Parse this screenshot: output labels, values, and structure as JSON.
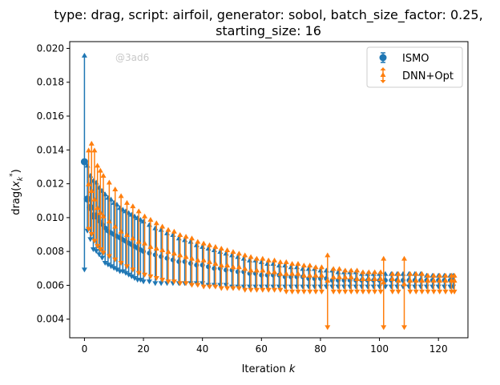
{
  "chart_data": {
    "type": "scatter",
    "title_line1": "type: drag, script: airfoil, generator: sobol, batch_size_factor: 0.25,",
    "title_line2": "starting_size: 16",
    "xlabel": "Iteration",
    "xlabel_italic": "k",
    "ylabel": "drag(",
    "ylabel_var": "x",
    "ylabel_sub": "k",
    "ylabel_sup": "*",
    "ylabel_close": ")",
    "xlim": [
      -5,
      130
    ],
    "ylim": [
      0.0029,
      0.0204
    ],
    "xticks": [
      0,
      20,
      40,
      60,
      80,
      100,
      120
    ],
    "xtick_labels": [
      "0",
      "20",
      "40",
      "60",
      "80",
      "100",
      "120"
    ],
    "yticks": [
      0.004,
      0.006,
      0.008,
      0.01,
      0.012,
      0.014,
      0.016,
      0.018,
      0.02
    ],
    "ytick_labels": [
      "0.004",
      "0.006",
      "0.008",
      "0.010",
      "0.012",
      "0.014",
      "0.016",
      "0.018",
      "0.020"
    ],
    "watermark": "@3ad6",
    "legend": {
      "placement": "top-right",
      "entries": [
        "ISMO",
        "DNN+Opt"
      ]
    },
    "colors": {
      "ISMO": "#1f77b4",
      "DNN+Opt": "#ff7f0e"
    },
    "series": [
      {
        "name": "ISMO",
        "x": [
          0,
          1,
          2,
          3,
          4,
          5,
          6,
          7,
          8,
          9,
          10,
          11,
          12,
          13,
          14,
          15,
          16,
          17,
          18,
          19,
          20,
          22,
          24,
          26,
          28,
          30,
          32,
          34,
          36,
          38,
          40,
          42,
          44,
          46,
          48,
          50,
          52,
          54,
          56,
          58,
          60,
          62,
          64,
          66,
          68,
          70,
          72,
          74,
          76,
          78,
          80,
          82,
          84,
          86,
          88,
          90,
          92,
          94,
          96,
          98,
          100,
          102,
          104,
          106,
          108,
          110,
          112,
          114,
          116,
          118,
          120,
          122,
          124,
          125
        ],
        "y": [
          0.0133,
          0.0111,
          0.0106,
          0.0101,
          0.0101,
          0.0098,
          0.0096,
          0.0094,
          0.0092,
          0.0091,
          0.009,
          0.0089,
          0.0088,
          0.0087,
          0.0086,
          0.0085,
          0.0084,
          0.0083,
          0.0082,
          0.0081,
          0.008,
          0.0079,
          0.0078,
          0.0077,
          0.0076,
          0.0075,
          0.0074,
          0.0074,
          0.0073,
          0.0072,
          0.0072,
          0.0071,
          0.007,
          0.007,
          0.0069,
          0.0069,
          0.0068,
          0.0068,
          0.0067,
          0.0067,
          0.0066,
          0.0066,
          0.0066,
          0.0066,
          0.0065,
          0.0065,
          0.0065,
          0.0065,
          0.0064,
          0.0064,
          0.0064,
          0.0064,
          0.0063,
          0.0063,
          0.0063,
          0.0063,
          0.0063,
          0.0063,
          0.0063,
          0.0063,
          0.0063,
          0.0063,
          0.0063,
          0.0063,
          0.0063,
          0.0063,
          0.0063,
          0.0063,
          0.0063,
          0.0063,
          0.0063,
          0.0063,
          0.0063,
          0.0063
        ],
        "ylow": [
          0.0069,
          0.0092,
          0.0087,
          0.0081,
          0.008,
          0.0078,
          0.0076,
          0.0073,
          0.0072,
          0.0071,
          0.007,
          0.0069,
          0.0068,
          0.0068,
          0.0067,
          0.0066,
          0.0065,
          0.0064,
          0.0063,
          0.0063,
          0.0062,
          0.0062,
          0.0061,
          0.0061,
          0.0061,
          0.0061,
          0.0061,
          0.0061,
          0.0061,
          0.0061,
          0.0061,
          0.006,
          0.006,
          0.006,
          0.006,
          0.0059,
          0.0059,
          0.0059,
          0.0059,
          0.0059,
          0.0059,
          0.0059,
          0.0059,
          0.0059,
          0.0059,
          0.0059,
          0.0059,
          0.0059,
          0.0059,
          0.0059,
          0.0059,
          0.0059,
          0.0059,
          0.0059,
          0.0059,
          0.0059,
          0.0059,
          0.0059,
          0.0059,
          0.0059,
          0.0059,
          0.0059,
          0.0059,
          0.0059,
          0.0059,
          0.0059,
          0.0059,
          0.0059,
          0.0059,
          0.0059,
          0.0059,
          0.0059,
          0.0059,
          0.0059
        ],
        "yhigh": [
          0.0196,
          0.0131,
          0.0125,
          0.0122,
          0.0121,
          0.0118,
          0.0116,
          0.0114,
          0.0112,
          0.0111,
          0.0109,
          0.0108,
          0.0106,
          0.0105,
          0.0104,
          0.0103,
          0.0102,
          0.0101,
          0.01,
          0.0099,
          0.0098,
          0.0096,
          0.0094,
          0.0093,
          0.0091,
          0.009,
          0.0088,
          0.0087,
          0.0086,
          0.0084,
          0.0083,
          0.0082,
          0.0081,
          0.008,
          0.0079,
          0.0078,
          0.0077,
          0.0076,
          0.0075,
          0.0075,
          0.0074,
          0.0073,
          0.0073,
          0.0072,
          0.0072,
          0.0071,
          0.0071,
          0.007,
          0.007,
          0.007,
          0.0069,
          0.0069,
          0.0069,
          0.0068,
          0.0068,
          0.0068,
          0.0068,
          0.0067,
          0.0067,
          0.0067,
          0.0067,
          0.0067,
          0.0067,
          0.0067,
          0.0067,
          0.0067,
          0.0067,
          0.0067,
          0.0066,
          0.0066,
          0.0066,
          0.0066,
          0.0066,
          0.0066
        ]
      },
      {
        "name": "DNN+Opt",
        "x": [
          1,
          2,
          3,
          4,
          5,
          6,
          8,
          10,
          12,
          14,
          16,
          18,
          20,
          22,
          24,
          26,
          28,
          30,
          32,
          34,
          36,
          38,
          40,
          42,
          44,
          46,
          48,
          50,
          52,
          54,
          56,
          58,
          60,
          62,
          64,
          66,
          68,
          70,
          72,
          74,
          76,
          78,
          80,
          82,
          84,
          86,
          88,
          90,
          92,
          94,
          96,
          98,
          100,
          101,
          104,
          106,
          108,
          110,
          112,
          114,
          116,
          118,
          120,
          122,
          124,
          125
        ],
        "y": [
          0.012,
          0.0116,
          0.0111,
          0.0106,
          0.0103,
          0.0101,
          0.0098,
          0.0095,
          0.0092,
          0.009,
          0.0088,
          0.0086,
          0.0085,
          0.0083,
          0.0082,
          0.0081,
          0.008,
          0.0079,
          0.0078,
          0.0077,
          0.0076,
          0.0075,
          0.0075,
          0.0074,
          0.0073,
          0.0072,
          0.0072,
          0.0071,
          0.0071,
          0.007,
          0.0069,
          0.0069,
          0.0069,
          0.0068,
          0.0068,
          0.0067,
          0.0067,
          0.0067,
          0.0067,
          0.0066,
          0.0066,
          0.0066,
          0.0066,
          0.0063,
          0.0065,
          0.0065,
          0.0065,
          0.0065,
          0.0064,
          0.0064,
          0.0064,
          0.0064,
          0.0064,
          0.0062,
          0.0064,
          0.0063,
          0.0061,
          0.0063,
          0.0063,
          0.0063,
          0.0063,
          0.0063,
          0.0063,
          0.0063,
          0.0063,
          0.0063
        ],
        "ylow": [
          0.0093,
          0.009,
          0.0086,
          0.0083,
          0.0081,
          0.0079,
          0.0077,
          0.0075,
          0.0073,
          0.0071,
          0.0069,
          0.0067,
          0.0066,
          0.0065,
          0.0064,
          0.0063,
          0.0062,
          0.0062,
          0.0061,
          0.0061,
          0.006,
          0.006,
          0.0059,
          0.0059,
          0.0059,
          0.0058,
          0.0058,
          0.0058,
          0.0058,
          0.0057,
          0.0057,
          0.0057,
          0.0057,
          0.0057,
          0.0057,
          0.0057,
          0.0056,
          0.0056,
          0.0056,
          0.0056,
          0.0056,
          0.0056,
          0.0056,
          0.0035,
          0.0056,
          0.0056,
          0.0056,
          0.0056,
          0.0056,
          0.0056,
          0.0056,
          0.0056,
          0.0056,
          0.0035,
          0.0056,
          0.0056,
          0.0035,
          0.0056,
          0.0056,
          0.0056,
          0.0056,
          0.0056,
          0.0056,
          0.0056,
          0.0056,
          0.0056
        ],
        "yhigh": [
          0.014,
          0.0144,
          0.014,
          0.0131,
          0.0128,
          0.0125,
          0.0121,
          0.0117,
          0.0113,
          0.0109,
          0.0107,
          0.0104,
          0.0101,
          0.0099,
          0.0097,
          0.0095,
          0.0093,
          0.0092,
          0.009,
          0.0089,
          0.0088,
          0.0086,
          0.0085,
          0.0084,
          0.0083,
          0.0082,
          0.0081,
          0.008,
          0.0079,
          0.0078,
          0.0077,
          0.0076,
          0.0076,
          0.0075,
          0.0075,
          0.0074,
          0.0074,
          0.0073,
          0.0073,
          0.0072,
          0.0072,
          0.0071,
          0.0071,
          0.0078,
          0.007,
          0.007,
          0.0069,
          0.0069,
          0.0069,
          0.0068,
          0.0068,
          0.0068,
          0.0068,
          0.0076,
          0.0067,
          0.0067,
          0.0076,
          0.0067,
          0.0067,
          0.0067,
          0.0066,
          0.0066,
          0.0066,
          0.0066,
          0.0066,
          0.0066
        ]
      }
    ]
  }
}
